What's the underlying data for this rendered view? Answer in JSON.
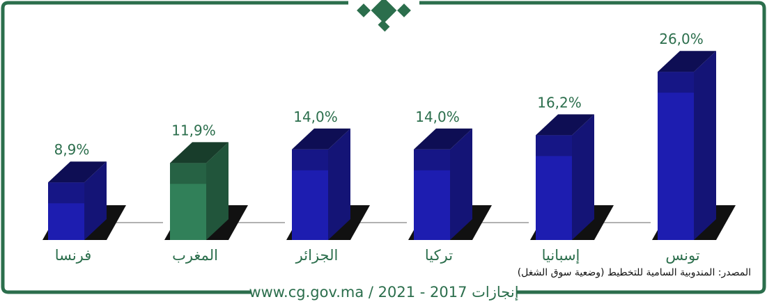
{
  "chart_data": {
    "type": "bar3d",
    "categories": [
      "فرنسا",
      "المغرب",
      "الجزائر",
      "تركيا",
      "إسبانيا",
      "تونس"
    ],
    "values": [
      8.9,
      11.9,
      14.0,
      14.0,
      16.2,
      26.0
    ],
    "value_labels": [
      "8,9%",
      "11,9%",
      "14,0%",
      "14,0%",
      "16,2%",
      "26,0%"
    ],
    "colors": [
      "#1c1ca8",
      "#2f7a55",
      "#1c1ca8",
      "#1c1ca8",
      "#1c1ca8",
      "#1c1ca8"
    ],
    "source": "المصدر: المندوبية السامية للتخطيط (وضعية سوق الشغل)",
    "footer": "www.cg.gov.ma / 2021 - 2017 إنجازات"
  }
}
